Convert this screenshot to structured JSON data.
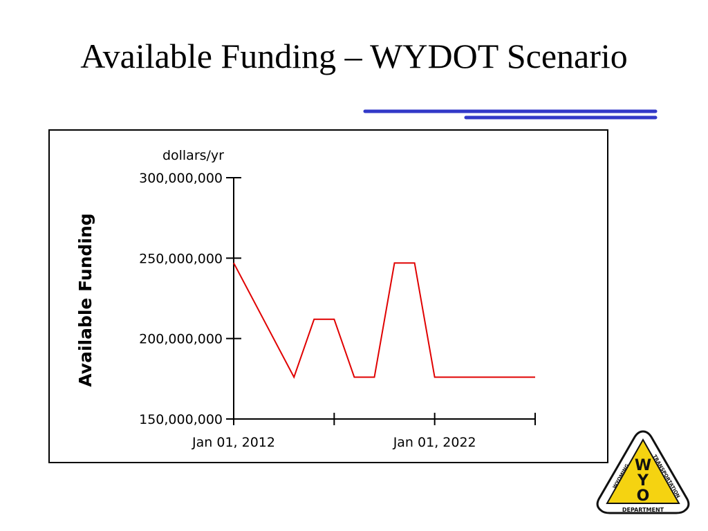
{
  "slide": {
    "title": "Available Funding – WYDOT Scenario"
  },
  "colors": {
    "title_text": "#000000",
    "decor_lines": "#3239c8",
    "series_line": "#e00000",
    "logo_yellow": "#f5d311",
    "logo_black": "#111111"
  },
  "logo": {
    "letters": [
      "W",
      "Y",
      "O"
    ],
    "left_text": "WYOMING",
    "right_text": "TRANSPORTATION",
    "bottom_text": "DEPARTMENT"
  },
  "chart_data": {
    "type": "line",
    "title": "",
    "ylabel": "Available Funding",
    "yunit": "dollars/yr",
    "ylim": [
      150000000,
      300000000
    ],
    "yticks": [
      150000000,
      200000000,
      250000000,
      300000000
    ],
    "ytick_labels": [
      "150,000,000",
      "200,000,000",
      "250,000,000",
      "300,000,000"
    ],
    "xlim": [
      2003,
      2033
    ],
    "xticks": [
      2003,
      2013,
      2023,
      2033
    ],
    "xtick_labels": [
      {
        "at": 2003,
        "text": "Jan 01, 2012"
      },
      {
        "at": 2023,
        "text": "Jan 01, 2022"
      }
    ],
    "grid": false,
    "legend": "none",
    "series": [
      {
        "x": [
          2003,
          2009,
          2011,
          2013,
          2015,
          2017,
          2019,
          2021,
          2023,
          2033
        ],
        "y": [
          247000000,
          176000000,
          212000000,
          212000000,
          176000000,
          176000000,
          247000000,
          247000000,
          176000000,
          176000000
        ]
      }
    ]
  }
}
